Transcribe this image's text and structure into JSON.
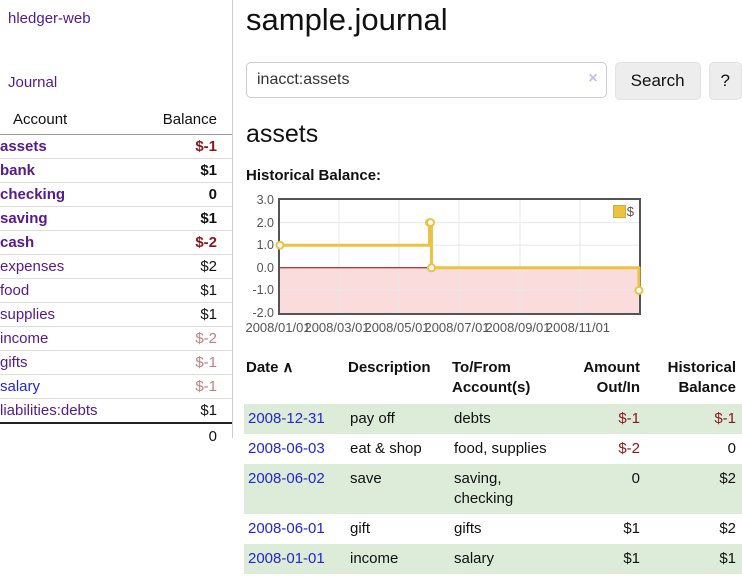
{
  "sidebar": {
    "app_title": "hledger-web",
    "journal_label": "Journal",
    "accounts_table": {
      "headers": {
        "account": "Account",
        "balance": "Balance"
      },
      "rows": [
        {
          "name": "assets",
          "balance": "$-1"
        },
        {
          "name": "bank",
          "balance": "$1"
        },
        {
          "name": "checking",
          "balance": "0"
        },
        {
          "name": "saving",
          "balance": "$1"
        },
        {
          "name": "cash",
          "balance": "$-2"
        },
        {
          "name": "expenses",
          "balance": "$2"
        },
        {
          "name": "food",
          "balance": "$1"
        },
        {
          "name": "supplies",
          "balance": "$1"
        },
        {
          "name": "income",
          "balance": "$-2"
        },
        {
          "name": "gifts",
          "balance": "$-1"
        },
        {
          "name": "salary",
          "balance": "$-1"
        },
        {
          "name": "liabilities:debts",
          "balance": "$1"
        }
      ],
      "total": "0"
    }
  },
  "main": {
    "title": "sample.journal",
    "search": {
      "value": "inacct:assets",
      "clear_icon": "×",
      "search_label": "Search",
      "help_label": "?"
    },
    "account_heading": "assets",
    "chart_label": "Historical Balance:",
    "register": {
      "headers": {
        "date": "Date",
        "date_sort_icon": "∧",
        "description": "Description",
        "tofrom_line1": "To/From",
        "tofrom_line2": "Account(s)",
        "amount_line1": "Amount",
        "amount_line2": "Out/In",
        "balance_line1": "Historical",
        "balance_line2": "Balance"
      },
      "rows": [
        {
          "date": "2008-12-31",
          "description": "pay off",
          "tofrom": "debts",
          "amount": "$-1",
          "balance": "$-1"
        },
        {
          "date": "2008-06-03",
          "description": "eat & shop",
          "tofrom": "food, supplies",
          "amount": "$-2",
          "balance": "0"
        },
        {
          "date": "2008-06-02",
          "description": "save",
          "tofrom": "saving, checking",
          "amount": "0",
          "balance": "$2"
        },
        {
          "date": "2008-06-01",
          "description": "gift",
          "tofrom": "gifts",
          "amount": "$1",
          "balance": "$2"
        },
        {
          "date": "2008-01-01",
          "description": "income",
          "tofrom": "salary",
          "amount": "$1",
          "balance": "$1"
        }
      ]
    }
  },
  "chart_data": {
    "type": "line",
    "step": true,
    "title": "Historical Balance:",
    "legend_label": "$",
    "legend_position": "top-right",
    "series": [
      {
        "name": "$",
        "points": [
          [
            "2008-01-01",
            1
          ],
          [
            "2008-06-01",
            2
          ],
          [
            "2008-06-02",
            2
          ],
          [
            "2008-06-03",
            0
          ],
          [
            "2008-12-31",
            -1
          ]
        ]
      }
    ],
    "ylim": [
      -2,
      3
    ],
    "yticks": [
      3,
      2,
      1,
      0,
      -1,
      -2
    ],
    "xrange": [
      "2008-01-01",
      "2008-12-31"
    ],
    "xticks": [
      {
        "date": "2008-01-01",
        "label": "2008/01/01"
      },
      {
        "date": "2008-03-01",
        "label": "2008/03/01"
      },
      {
        "date": "2008-05-01",
        "label": "2008/05/01"
      },
      {
        "date": "2008-07-01",
        "label": "2008/07/01"
      },
      {
        "date": "2008-09-01",
        "label": "2008/09/01"
      },
      {
        "date": "2008-11-01",
        "label": "2008/11/01"
      }
    ],
    "grid": true,
    "colors": {
      "line": "#edc240",
      "negative_fill": "#fadcdc",
      "zero_line": "#8b0000",
      "grid": "#e8e8e8"
    }
  },
  "colors": {
    "link_purple": "#551a8b",
    "link_blue": "#2126d2",
    "negative_strong": "#8f1518",
    "negative_soft": "#c2807f",
    "row_stripe_green": "#ddecd9",
    "divider_gray": "#cccccc"
  }
}
